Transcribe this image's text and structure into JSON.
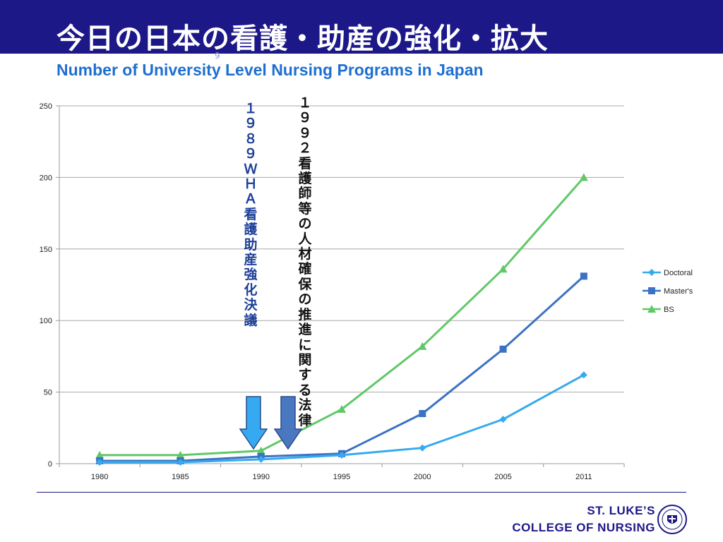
{
  "slide": {
    "title": "今日の日本の看護・助産の強化・拡大",
    "subtitle": "Number of University Level Nursing Programs in Japan",
    "slide_number": "9"
  },
  "annotations": {
    "wha_1989": "１９８９ＷＨＡ看護助産強化決議",
    "law_1992": "１９９２看護師等の人材確保の推進に関する法律"
  },
  "footer": {
    "line1": "ST. LUKE’S",
    "line2": "COLLEGE OF NURSING"
  },
  "colors": {
    "header": "#1d1888",
    "subtitle": "#1e6fd0",
    "doctoral": "#35aaf0",
    "masters": "#3b72c4",
    "bs": "#60c868",
    "arrow_light": "#35aaf0",
    "arrow_dark": "#4a78c0",
    "wha_text": "#1d3f99",
    "law_text": "#111111"
  },
  "chart_data": {
    "type": "line",
    "title": "",
    "xlabel": "",
    "ylabel": "",
    "categories": [
      "1980",
      "1985",
      "1990",
      "1995",
      "2000",
      "2005",
      "2011"
    ],
    "ylim": [
      0,
      250
    ],
    "yticks": [
      0,
      50,
      100,
      150,
      200,
      250
    ],
    "grid": true,
    "legend_position": "right",
    "series": [
      {
        "name": "Doctoral",
        "marker": "diamond",
        "color": "#35aaf0",
        "values": [
          1,
          1,
          3,
          6,
          11,
          31,
          62
        ]
      },
      {
        "name": "Master's",
        "marker": "square",
        "color": "#3b72c4",
        "values": [
          2,
          2,
          5,
          7,
          35,
          80,
          131
        ]
      },
      {
        "name": "BS",
        "marker": "triangle",
        "color": "#60c868",
        "values": [
          6,
          6,
          9,
          38,
          82,
          136,
          200
        ]
      }
    ]
  }
}
